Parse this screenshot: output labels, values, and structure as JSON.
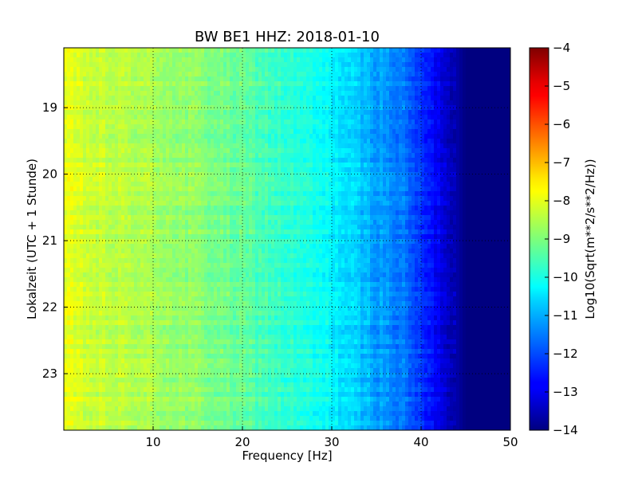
{
  "chart_data": {
    "type": "heatmap",
    "title": "BW BE1 HHZ: 2018-01-10",
    "xlabel": "Frequency [Hz]",
    "ylabel": "Lokalzeit (UTC + 1 Stunde)",
    "xlim": [
      0,
      50
    ],
    "ylim": [
      23.85,
      18.1
    ],
    "x_ticks": [
      10,
      20,
      30,
      40,
      50
    ],
    "x_tick_labels": [
      "10",
      "20",
      "30",
      "40",
      "50"
    ],
    "y_ticks": [
      19,
      20,
      21,
      22,
      23
    ],
    "y_tick_labels": [
      "19",
      "20",
      "21",
      "22",
      "23"
    ],
    "grid": true,
    "colorbar": {
      "label": "Log10(Sqrt(m**2/s**2/Hz))",
      "range": [
        -14,
        -4
      ],
      "ticks": [
        -4,
        -5,
        -6,
        -7,
        -8,
        -9,
        -10,
        -11,
        -12,
        -13,
        -14
      ],
      "tick_labels": [
        "−4",
        "−5",
        "−6",
        "−7",
        "−8",
        "−9",
        "−10",
        "−11",
        "−12",
        "−13",
        "−14"
      ],
      "colormap": "jet"
    },
    "frequency_profile": {
      "frequency_hz": [
        0,
        2,
        5,
        8,
        10,
        15,
        20,
        25,
        28,
        30,
        33,
        36,
        38,
        40,
        42,
        44,
        45,
        50
      ],
      "log10_psd": [
        -8.0,
        -8.2,
        -8.4,
        -8.5,
        -8.6,
        -8.9,
        -9.3,
        -9.8,
        -10.1,
        -10.3,
        -10.8,
        -11.3,
        -11.6,
        -12.3,
        -12.9,
        -13.6,
        -14.0,
        -14.0
      ]
    }
  }
}
